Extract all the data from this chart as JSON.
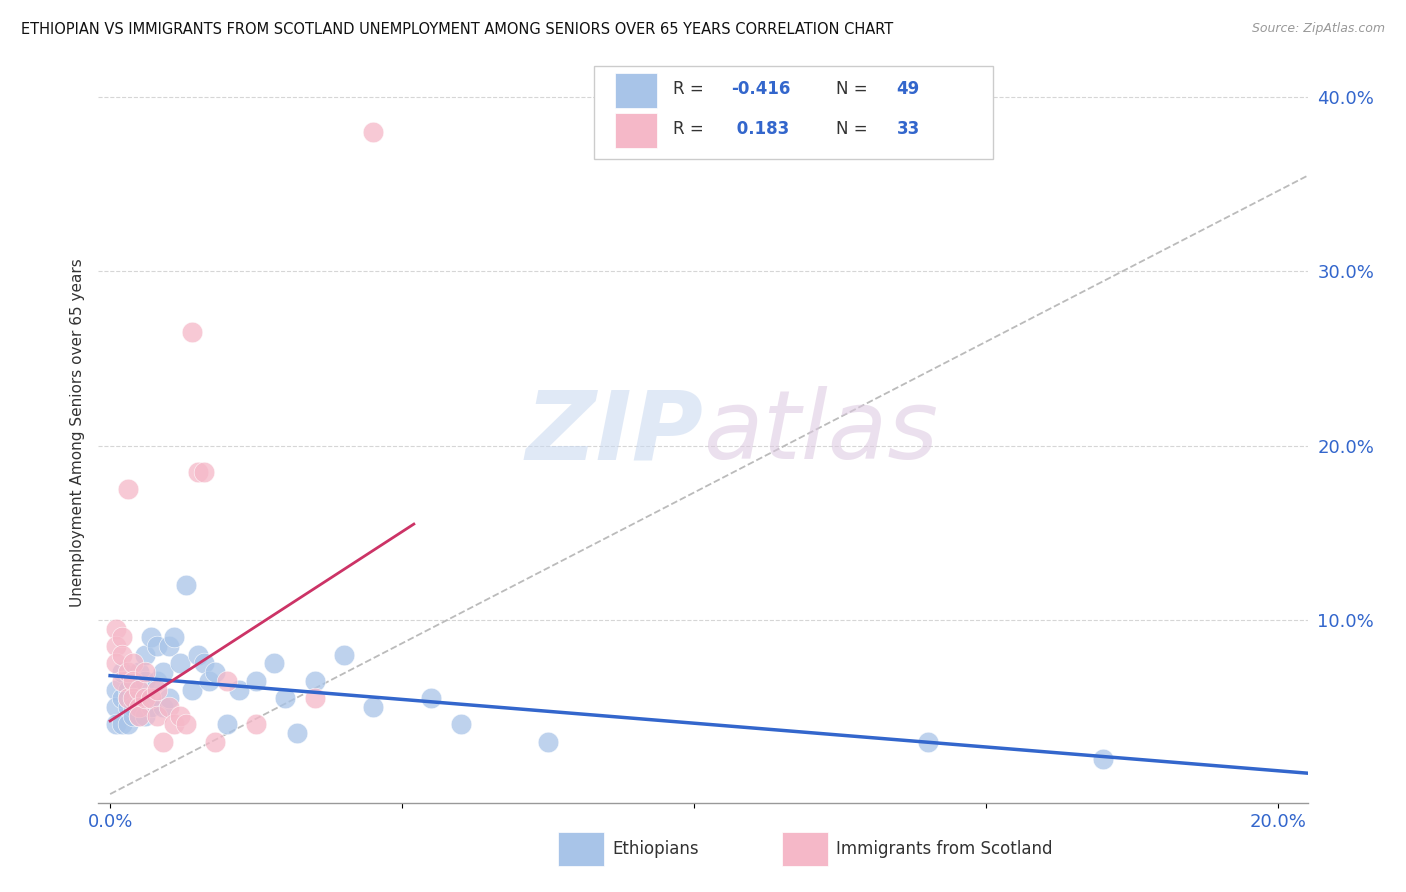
{
  "title": "ETHIOPIAN VS IMMIGRANTS FROM SCOTLAND UNEMPLOYMENT AMONG SENIORS OVER 65 YEARS CORRELATION CHART",
  "source": "Source: ZipAtlas.com",
  "ylabel": "Unemployment Among Seniors over 65 years",
  "xlim": [
    -0.002,
    0.205
  ],
  "ylim": [
    -0.005,
    0.42
  ],
  "legend_r_blue": "-0.416",
  "legend_n_blue": "49",
  "legend_r_pink": "0.183",
  "legend_n_pink": "33",
  "blue_color": "#a8c4e8",
  "pink_color": "#f5b8c8",
  "blue_line_color": "#3366cc",
  "pink_line_color": "#cc3366",
  "grid_color": "#cccccc",
  "blue_line_x": [
    0.0,
    0.205
  ],
  "blue_line_y": [
    0.068,
    0.012
  ],
  "pink_line_x": [
    0.0,
    0.052
  ],
  "pink_line_y": [
    0.042,
    0.155
  ],
  "dash_line_x": [
    0.0,
    0.205
  ],
  "dash_line_y": [
    0.0,
    0.355
  ],
  "blue_scatter_x": [
    0.001,
    0.001,
    0.001,
    0.002,
    0.002,
    0.002,
    0.003,
    0.003,
    0.003,
    0.003,
    0.004,
    0.004,
    0.004,
    0.005,
    0.005,
    0.005,
    0.006,
    0.006,
    0.006,
    0.007,
    0.007,
    0.008,
    0.008,
    0.009,
    0.009,
    0.01,
    0.01,
    0.011,
    0.012,
    0.013,
    0.014,
    0.015,
    0.016,
    0.017,
    0.018,
    0.02,
    0.022,
    0.025,
    0.028,
    0.03,
    0.032,
    0.035,
    0.04,
    0.045,
    0.055,
    0.06,
    0.075,
    0.14,
    0.17
  ],
  "blue_scatter_y": [
    0.06,
    0.05,
    0.04,
    0.055,
    0.07,
    0.04,
    0.05,
    0.06,
    0.04,
    0.055,
    0.065,
    0.05,
    0.045,
    0.07,
    0.055,
    0.045,
    0.08,
    0.065,
    0.045,
    0.09,
    0.05,
    0.085,
    0.065,
    0.07,
    0.05,
    0.085,
    0.055,
    0.09,
    0.075,
    0.12,
    0.06,
    0.08,
    0.075,
    0.065,
    0.07,
    0.04,
    0.06,
    0.065,
    0.075,
    0.055,
    0.035,
    0.065,
    0.08,
    0.05,
    0.055,
    0.04,
    0.03,
    0.03,
    0.02
  ],
  "pink_scatter_x": [
    0.001,
    0.001,
    0.001,
    0.002,
    0.002,
    0.002,
    0.003,
    0.003,
    0.003,
    0.004,
    0.004,
    0.004,
    0.005,
    0.005,
    0.005,
    0.006,
    0.006,
    0.007,
    0.008,
    0.008,
    0.009,
    0.01,
    0.011,
    0.012,
    0.013,
    0.014,
    0.015,
    0.016,
    0.018,
    0.02,
    0.025,
    0.035,
    0.045
  ],
  "pink_scatter_y": [
    0.095,
    0.085,
    0.075,
    0.09,
    0.08,
    0.065,
    0.175,
    0.07,
    0.055,
    0.075,
    0.065,
    0.055,
    0.06,
    0.05,
    0.045,
    0.07,
    0.055,
    0.055,
    0.045,
    0.06,
    0.03,
    0.05,
    0.04,
    0.045,
    0.04,
    0.265,
    0.185,
    0.185,
    0.03,
    0.065,
    0.04,
    0.055,
    0.38
  ]
}
